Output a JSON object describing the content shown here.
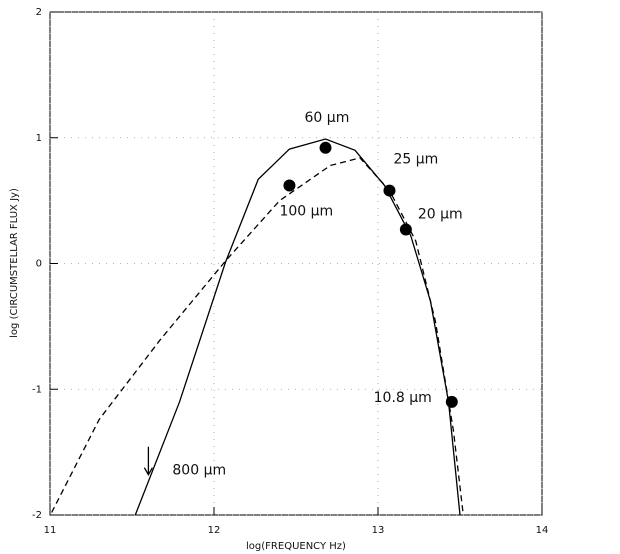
{
  "chart_data": {
    "type": "scatter",
    "xlabel": "log(FREQUENCY Hz)",
    "ylabel": "log (CIRCUMSTELLAR FLUX Jy)",
    "xlim": [
      11,
      14
    ],
    "xticks": [
      11,
      12,
      13,
      14
    ],
    "ylim": [
      -2,
      2
    ],
    "yticks": [
      -2,
      -1,
      0,
      1,
      2
    ],
    "grid": true,
    "color": "#000000",
    "curves": [
      {
        "style": "solid",
        "x": [
          11.52,
          11.79,
          12.07,
          12.27,
          12.46,
          12.68,
          12.86,
          13.04,
          13.2,
          13.32,
          13.43,
          13.5
        ],
        "y": [
          -2,
          -1.1,
          0.01,
          0.67,
          0.91,
          0.99,
          0.9,
          0.62,
          0.22,
          -0.3,
          -1.1,
          -2
        ]
      },
      {
        "style": "dashed",
        "x": [
          11.01,
          11.3,
          11.67,
          12.07,
          12.4,
          12.71,
          12.89,
          13.07,
          13.23,
          13.35,
          13.46,
          13.52
        ],
        "y": [
          -1.98,
          -1.24,
          -0.61,
          0.02,
          0.5,
          0.78,
          0.84,
          0.58,
          0.18,
          -0.46,
          -1.33,
          -2
        ]
      }
    ],
    "points": {
      "x": [
        12.68,
        12.46,
        13.07,
        13.17,
        13.45,
        11.6
      ],
      "y": [
        0.92,
        0.62,
        0.58,
        0.27,
        -1.1,
        -1.6
      ],
      "labels": [
        "60 μm",
        "100 μm",
        "25 μm",
        "20 μm",
        "10.8 μm",
        "800 μm"
      ],
      "upper_limit": [
        false,
        false,
        false,
        false,
        false,
        true
      ]
    }
  }
}
